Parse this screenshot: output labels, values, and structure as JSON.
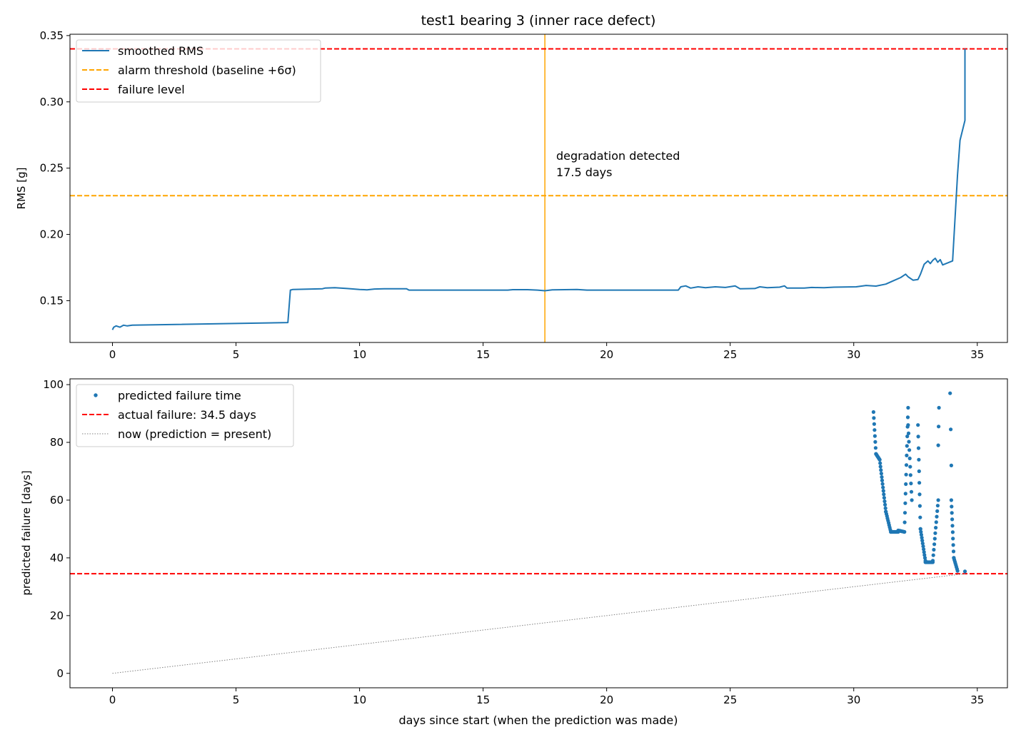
{
  "figure_title": "test1 bearing 3 (inner race defect)",
  "chart_data": [
    {
      "type": "line",
      "ylabel": "RMS [g]",
      "xlabel": "",
      "xlim": [
        -1.72,
        36.22
      ],
      "ylim": [
        0.1185,
        0.351
      ],
      "xticks": [
        0,
        5,
        10,
        15,
        20,
        25,
        30,
        35
      ],
      "yticks": [
        0.15,
        0.2,
        0.25,
        0.3,
        0.35
      ],
      "ytick_labels": [
        "0.15",
        "0.20",
        "0.25",
        "0.30",
        "0.35"
      ],
      "legend_position": "upper-left",
      "legend": [
        {
          "label": "smoothed RMS",
          "style": "solid",
          "color": "#1f77b4"
        },
        {
          "label": "alarm threshold (baseline +6σ)",
          "style": "dashed",
          "color": "#ffa500"
        },
        {
          "label": "failure level",
          "style": "dashed",
          "color": "#ff0000"
        }
      ],
      "series": [
        {
          "name": "smoothed RMS",
          "color": "#1f77b4",
          "points": [
            [
              0.0,
              0.128
            ],
            [
              0.05,
              0.13
            ],
            [
              0.15,
              0.131
            ],
            [
              0.3,
              0.13
            ],
            [
              0.45,
              0.1315
            ],
            [
              0.6,
              0.131
            ],
            [
              0.8,
              0.1315
            ],
            [
              7.1,
              0.1335
            ],
            [
              7.2,
              0.158
            ],
            [
              7.3,
              0.1585
            ],
            [
              8.5,
              0.159
            ],
            [
              8.6,
              0.1595
            ],
            [
              9.0,
              0.1598
            ],
            [
              9.5,
              0.1592
            ],
            [
              10.0,
              0.1585
            ],
            [
              10.3,
              0.1582
            ],
            [
              10.6,
              0.1588
            ],
            [
              11.0,
              0.159
            ],
            [
              11.9,
              0.159
            ],
            [
              12.0,
              0.158
            ],
            [
              16.0,
              0.158
            ],
            [
              16.2,
              0.1583
            ],
            [
              16.8,
              0.1583
            ],
            [
              17.2,
              0.158
            ],
            [
              17.5,
              0.1575
            ],
            [
              17.8,
              0.1582
            ],
            [
              18.3,
              0.1583
            ],
            [
              18.8,
              0.1585
            ],
            [
              19.2,
              0.158
            ],
            [
              19.5,
              0.158
            ],
            [
              22.9,
              0.158
            ],
            [
              23.0,
              0.1605
            ],
            [
              23.2,
              0.1612
            ],
            [
              23.4,
              0.1595
            ],
            [
              23.7,
              0.1605
            ],
            [
              24.0,
              0.1598
            ],
            [
              24.4,
              0.1605
            ],
            [
              24.8,
              0.16
            ],
            [
              25.2,
              0.1612
            ],
            [
              25.4,
              0.159
            ],
            [
              26.0,
              0.1592
            ],
            [
              26.2,
              0.1605
            ],
            [
              26.5,
              0.1598
            ],
            [
              27.0,
              0.1602
            ],
            [
              27.2,
              0.1612
            ],
            [
              27.3,
              0.1595
            ],
            [
              28.0,
              0.1595
            ],
            [
              28.3,
              0.16
            ],
            [
              28.8,
              0.1598
            ],
            [
              29.2,
              0.1602
            ],
            [
              30.1,
              0.1605
            ],
            [
              30.5,
              0.1615
            ],
            [
              30.9,
              0.161
            ],
            [
              31.3,
              0.1625
            ],
            [
              31.6,
              0.165
            ],
            [
              31.9,
              0.1675
            ],
            [
              32.1,
              0.17
            ],
            [
              32.2,
              0.168
            ],
            [
              32.4,
              0.1655
            ],
            [
              32.6,
              0.166
            ],
            [
              32.7,
              0.17
            ],
            [
              32.85,
              0.1775
            ],
            [
              33.0,
              0.18
            ],
            [
              33.1,
              0.178
            ],
            [
              33.2,
              0.1805
            ],
            [
              33.3,
              0.182
            ],
            [
              33.4,
              0.179
            ],
            [
              33.5,
              0.181
            ],
            [
              33.6,
              0.177
            ],
            [
              34.0,
              0.18
            ],
            [
              34.2,
              0.245
            ],
            [
              34.3,
              0.271
            ],
            [
              34.5,
              0.286
            ],
            [
              34.5,
              0.34
            ]
          ]
        }
      ],
      "hlines": [
        {
          "label": "alarm threshold (baseline +6σ)",
          "y": 0.2292,
          "color": "#ffa500",
          "style": "dashed"
        },
        {
          "label": "failure level",
          "y": 0.34,
          "color": "#ff0000",
          "style": "dashed"
        }
      ],
      "vline": {
        "x": 17.5,
        "color": "#ffa500"
      },
      "annotation": {
        "x": 17.9,
        "y": 0.25,
        "lines": [
          "degradation detected",
          "17.5 days"
        ]
      }
    },
    {
      "type": "scatter",
      "ylabel": "predicted failure [days]",
      "xlabel": "days since start (when the prediction was made)",
      "xlim": [
        -1.72,
        36.22
      ],
      "ylim": [
        -5,
        102
      ],
      "xticks": [
        0,
        5,
        10,
        15,
        20,
        25,
        30,
        35
      ],
      "yticks": [
        0,
        20,
        40,
        60,
        80,
        100
      ],
      "ytick_labels": [
        "0",
        "20",
        "40",
        "60",
        "80",
        "100"
      ],
      "legend_position": "upper-left",
      "legend": [
        {
          "label": "predicted failure time",
          "style": "marker",
          "color": "#1f77b4"
        },
        {
          "label": "actual failure: 34.5 days",
          "style": "dashed",
          "color": "#ff0000"
        },
        {
          "label": "now (prediction = present)",
          "style": "dotted",
          "color": "#808080"
        }
      ],
      "hlines": [
        {
          "label": "actual failure: 34.5 days",
          "y": 34.5,
          "color": "#ff0000",
          "style": "dashed"
        }
      ],
      "now_line": {
        "from": [
          0,
          0
        ],
        "to": [
          34.5,
          34.5
        ],
        "color": "#808080"
      },
      "scatter_segments": [
        {
          "from": [
            30.8,
            90.5
          ],
          "to": [
            30.9,
            76
          ],
          "n": 8
        },
        {
          "from": [
            30.9,
            76
          ],
          "to": [
            31.05,
            74
          ],
          "n": 10
        },
        {
          "from": [
            31.05,
            74
          ],
          "to": [
            31.3,
            56
          ],
          "n": 16
        },
        {
          "from": [
            31.3,
            56
          ],
          "to": [
            31.5,
            49
          ],
          "n": 10
        },
        {
          "from": [
            31.5,
            49
          ],
          "to": [
            31.8,
            49
          ],
          "n": 12
        },
        {
          "from": [
            31.8,
            49.5
          ],
          "to": [
            32.05,
            49
          ],
          "n": 10
        },
        {
          "from": [
            32.05,
            49
          ],
          "to": [
            32.2,
            92
          ],
          "n": 14
        },
        {
          "from": [
            32.2,
            86
          ],
          "to": [
            32.35,
            60
          ],
          "n": 10
        },
        {
          "from": [
            32.6,
            86
          ],
          "to": [
            32.7,
            50
          ],
          "n": 10
        },
        {
          "from": [
            32.7,
            50
          ],
          "to": [
            32.9,
            39
          ],
          "n": 12
        },
        {
          "from": [
            32.9,
            38.5
          ],
          "to": [
            33.2,
            38.5
          ],
          "n": 12
        },
        {
          "from": [
            33.2,
            39
          ],
          "to": [
            33.42,
            60
          ],
          "n": 12
        },
        {
          "from": [
            33.42,
            79
          ],
          "to": [
            33.45,
            92
          ],
          "n": 3
        },
        {
          "from": [
            33.9,
            97
          ],
          "to": [
            33.95,
            72
          ],
          "n": 3
        },
        {
          "from": [
            33.95,
            60
          ],
          "to": [
            34.05,
            40
          ],
          "n": 10
        },
        {
          "from": [
            34.05,
            40
          ],
          "to": [
            34.2,
            35.5
          ],
          "n": 8
        }
      ],
      "extra_points": [
        [
          34.5,
          35.3
        ]
      ]
    }
  ]
}
